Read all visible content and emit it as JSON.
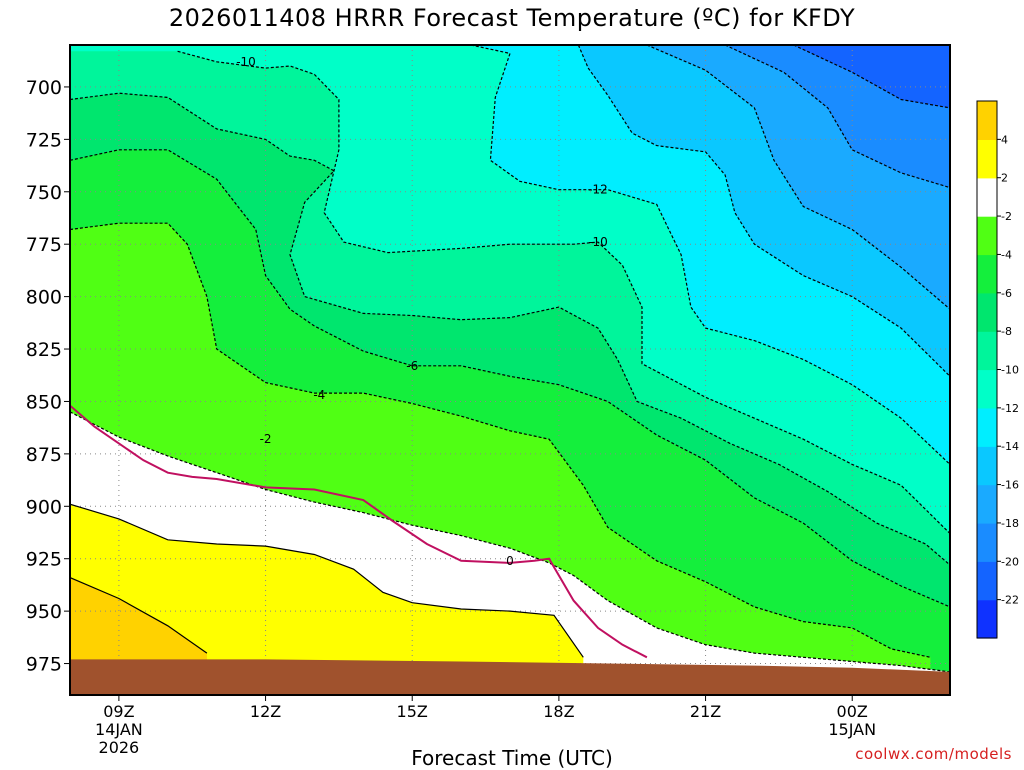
{
  "chart_data": {
    "type": "heatmap",
    "title": "2026011408 HRRR Forecast Temperature (ºC) for KFDY",
    "xlabel": "Forecast Time (UTC)",
    "ylabel": "",
    "x_ticks": [
      {
        "hour": 9,
        "lines": [
          "09Z",
          "14JAN",
          "2026"
        ]
      },
      {
        "hour": 12,
        "lines": [
          "12Z"
        ]
      },
      {
        "hour": 15,
        "lines": [
          "15Z"
        ]
      },
      {
        "hour": 18,
        "lines": [
          "18Z"
        ]
      },
      {
        "hour": 21,
        "lines": [
          "21Z"
        ]
      },
      {
        "hour": 24,
        "lines": [
          "00Z",
          "15JAN"
        ]
      }
    ],
    "xlim_hours": [
      8,
      26
    ],
    "y_ticks": [
      700,
      725,
      750,
      775,
      800,
      825,
      850,
      875,
      900,
      925,
      950,
      975
    ],
    "ylim_hPa": [
      680,
      990
    ],
    "grid": true,
    "colorbar": {
      "placement": "right",
      "levels": [
        -24,
        -22,
        -20,
        -18,
        -16,
        -14,
        -12,
        -10,
        -8,
        -6,
        -4,
        -2,
        2,
        4,
        6
      ],
      "tick_labels": [
        "-22",
        "-20",
        "-18",
        "-16",
        "-14",
        "-12",
        "-10",
        "-8",
        "-6",
        "-4",
        "-2",
        "2",
        "4"
      ],
      "colors": [
        "#0f32ff",
        "#1464ff",
        "#1a8cff",
        "#1aaaff",
        "#0ac8ff",
        "#00eeff",
        "#00ffc8",
        "#00f59b",
        "#00e66e",
        "#14ef3c",
        "#50ff14",
        "#ffffff",
        "#ffff00",
        "#ffd200"
      ]
    },
    "ground_color": "#a0522d",
    "contour_labels": [
      {
        "text": "-10",
        "hour": 11.6,
        "hPa": 688
      },
      {
        "text": "-12",
        "hour": 18.8,
        "hPa": 749
      },
      {
        "text": "-10",
        "hour": 18.8,
        "hPa": 774
      },
      {
        "text": "-6",
        "hour": 15.0,
        "hPa": 833
      },
      {
        "text": "-4",
        "hour": 13.1,
        "hPa": 847
      },
      {
        "text": "-2",
        "hour": 12.0,
        "hPa": 868
      },
      {
        "text": "0",
        "hour": 17.0,
        "hPa": 926
      }
    ],
    "contours": [
      {
        "level": -2,
        "dashed": true,
        "color": "#000000",
        "pts": [
          [
            8,
            855
          ],
          [
            9,
            867
          ],
          [
            10,
            876
          ],
          [
            11,
            884
          ],
          [
            12,
            892
          ],
          [
            13,
            898
          ],
          [
            14,
            903
          ],
          [
            15,
            909
          ],
          [
            16,
            914
          ],
          [
            17,
            920
          ],
          [
            17.8,
            927
          ],
          [
            18.3,
            933
          ],
          [
            19,
            945
          ],
          [
            20,
            958
          ],
          [
            21,
            966
          ],
          [
            22,
            970
          ],
          [
            23,
            972
          ],
          [
            24,
            974
          ],
          [
            25,
            976
          ],
          [
            26,
            979
          ]
        ]
      },
      {
        "level": 0,
        "dashed": false,
        "color": "#c01060",
        "pts": [
          [
            8,
            852
          ],
          [
            8.5,
            862
          ],
          [
            9,
            870
          ],
          [
            9.5,
            878
          ],
          [
            10,
            884
          ],
          [
            10.5,
            886
          ],
          [
            11,
            887
          ],
          [
            12,
            891
          ],
          [
            13,
            892
          ],
          [
            14,
            897
          ],
          [
            14.6,
            907
          ],
          [
            15.3,
            918
          ],
          [
            16,
            926
          ],
          [
            17,
            927
          ],
          [
            17.5,
            926
          ],
          [
            17.8,
            925
          ],
          [
            18.3,
            945
          ],
          [
            18.8,
            958
          ],
          [
            19.3,
            966
          ],
          [
            19.8,
            972
          ]
        ]
      },
      {
        "level": 2,
        "dashed": false,
        "color": "#000000",
        "pts": [
          [
            8,
            899
          ],
          [
            9,
            906
          ],
          [
            10,
            916
          ],
          [
            11,
            918
          ],
          [
            12,
            919
          ],
          [
            13,
            923
          ],
          [
            13.8,
            930
          ],
          [
            14.4,
            941
          ],
          [
            15,
            946
          ],
          [
            16,
            949
          ],
          [
            17,
            950
          ],
          [
            17.9,
            952
          ],
          [
            18.5,
            972
          ]
        ]
      },
      {
        "level": 4,
        "dashed": false,
        "color": "#000000",
        "pts": [
          [
            8,
            934
          ],
          [
            9,
            944
          ],
          [
            10,
            957
          ],
          [
            10.8,
            970
          ]
        ]
      },
      {
        "level": -4,
        "dashed": true,
        "color": "#000000",
        "pts": [
          [
            8,
            768
          ],
          [
            9,
            765
          ],
          [
            10,
            765
          ],
          [
            10.4,
            775
          ],
          [
            10.8,
            800
          ],
          [
            11,
            825
          ],
          [
            12,
            841
          ],
          [
            13,
            846
          ],
          [
            14,
            846
          ],
          [
            15,
            851
          ],
          [
            16,
            857
          ],
          [
            17,
            864
          ],
          [
            17.8,
            868
          ],
          [
            18.5,
            890
          ],
          [
            19,
            910
          ],
          [
            20,
            926
          ],
          [
            21,
            936
          ],
          [
            22,
            948
          ],
          [
            23,
            955
          ],
          [
            24,
            958
          ],
          [
            24.8,
            968
          ],
          [
            25.6,
            972
          ]
        ]
      },
      {
        "level": -6,
        "dashed": true,
        "color": "#000000",
        "pts": [
          [
            8,
            735
          ],
          [
            9,
            730
          ],
          [
            10,
            730
          ],
          [
            11,
            744
          ],
          [
            11.8,
            768
          ],
          [
            12,
            790
          ],
          [
            12.5,
            806
          ],
          [
            13,
            814
          ],
          [
            14,
            826
          ],
          [
            15,
            833
          ],
          [
            16,
            833
          ],
          [
            17,
            838
          ],
          [
            18,
            842
          ],
          [
            19,
            850
          ],
          [
            20,
            866
          ],
          [
            21,
            878
          ],
          [
            22,
            896
          ],
          [
            23,
            908
          ],
          [
            24,
            926
          ],
          [
            25,
            938
          ],
          [
            26,
            948
          ]
        ]
      },
      {
        "level": -8,
        "dashed": true,
        "color": "#000000",
        "pts": [
          [
            8,
            706
          ],
          [
            9,
            703
          ],
          [
            10,
            705
          ],
          [
            11,
            720
          ],
          [
            12,
            725
          ],
          [
            12.5,
            733
          ],
          [
            13,
            735
          ],
          [
            13.4,
            740
          ],
          [
            12.8,
            755
          ],
          [
            12.5,
            780
          ],
          [
            12.8,
            800
          ],
          [
            14,
            808
          ],
          [
            15,
            809
          ],
          [
            16,
            811
          ],
          [
            17,
            810
          ],
          [
            18,
            805
          ],
          [
            18.8,
            815
          ],
          [
            19.2,
            830
          ],
          [
            19.6,
            850
          ],
          [
            20.5,
            858
          ],
          [
            21.5,
            870
          ],
          [
            22.5,
            880
          ],
          [
            23.5,
            893
          ],
          [
            24.5,
            908
          ],
          [
            25.5,
            918
          ],
          [
            26,
            928
          ]
        ]
      },
      {
        "level": -10,
        "dashed": true,
        "color": "#000000",
        "pts": [
          [
            10.2,
            683
          ],
          [
            11,
            688
          ],
          [
            12,
            691
          ],
          [
            12.5,
            690
          ],
          [
            13,
            694
          ],
          [
            13.5,
            706
          ],
          [
            13.5,
            730
          ],
          [
            13.2,
            760
          ],
          [
            13.6,
            774
          ],
          [
            14.5,
            779
          ],
          [
            16,
            777
          ],
          [
            17,
            775
          ],
          [
            18.3,
            775
          ],
          [
            18.8,
            774
          ],
          [
            19.3,
            785
          ],
          [
            19.7,
            805
          ],
          [
            19.7,
            832
          ],
          [
            21,
            848
          ],
          [
            22,
            858
          ],
          [
            23,
            868
          ],
          [
            24,
            880
          ],
          [
            25,
            890
          ],
          [
            26,
            913
          ]
        ]
      },
      {
        "level": -12,
        "dashed": true,
        "color": "#000000",
        "pts": [
          [
            16.2,
            680
          ],
          [
            17,
            684
          ],
          [
            16.7,
            705
          ],
          [
            16.6,
            735
          ],
          [
            17.2,
            745
          ],
          [
            18,
            749
          ],
          [
            19,
            749
          ],
          [
            20,
            756
          ],
          [
            20.5,
            780
          ],
          [
            20.7,
            805
          ],
          [
            21,
            815
          ],
          [
            22,
            821
          ],
          [
            23,
            830
          ],
          [
            24,
            842
          ],
          [
            25,
            858
          ],
          [
            26,
            880
          ]
        ]
      },
      {
        "level": -14,
        "dashed": true,
        "color": "#000000",
        "pts": [
          [
            18.4,
            680
          ],
          [
            18.6,
            691
          ],
          [
            19,
            704
          ],
          [
            19.5,
            722
          ],
          [
            20,
            728
          ],
          [
            21,
            731
          ],
          [
            21.4,
            742
          ],
          [
            21.6,
            760
          ],
          [
            22,
            775
          ],
          [
            23,
            790
          ],
          [
            24,
            800
          ],
          [
            25,
            815
          ],
          [
            26,
            838
          ]
        ]
      },
      {
        "level": -16,
        "dashed": true,
        "color": "#000000",
        "pts": [
          [
            19.8,
            680
          ],
          [
            21,
            692
          ],
          [
            22,
            710
          ],
          [
            22.4,
            735
          ],
          [
            23,
            757
          ],
          [
            24,
            768
          ],
          [
            25,
            786
          ],
          [
            26,
            806
          ]
        ]
      },
      {
        "level": -18,
        "dashed": true,
        "color": "#000000",
        "pts": [
          [
            21.4,
            680
          ],
          [
            22.6,
            693
          ],
          [
            23.5,
            710
          ],
          [
            24,
            730
          ],
          [
            25,
            741
          ],
          [
            26,
            748
          ]
        ]
      },
      {
        "level": -20,
        "dashed": true,
        "color": "#000000",
        "pts": [
          [
            22.8,
            680
          ],
          [
            24,
            693
          ],
          [
            25,
            706
          ],
          [
            26,
            710
          ]
        ]
      }
    ]
  },
  "credit": "coolwx.com/models"
}
